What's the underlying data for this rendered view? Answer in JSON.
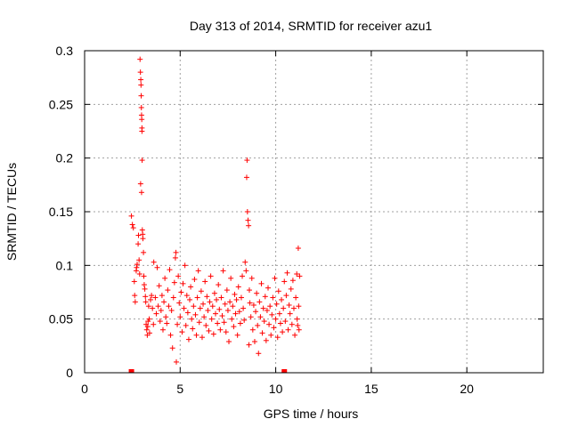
{
  "chart_data": {
    "type": "scatter",
    "title": "Day 313 of 2014, SRMTID for receiver azu1",
    "xlabel": "GPS time / hours",
    "ylabel": "SRMTID / TECUs",
    "xlim": [
      0,
      24
    ],
    "ylim": [
      0,
      0.3
    ],
    "xticks": [
      0,
      5,
      10,
      15,
      20
    ],
    "xtick_labels": [
      "0",
      "5",
      "10",
      "15",
      "20"
    ],
    "yticks": [
      0,
      0.05,
      0.1,
      0.15,
      0.2,
      0.25,
      0.3
    ],
    "ytick_labels": [
      "0",
      "0.05",
      "0.1",
      "0.15",
      "0.2",
      "0.25",
      "0.3"
    ],
    "grid": true,
    "marker": "+",
    "color": "#ff0000",
    "series": [
      {
        "name": "SRMTID",
        "points": [
          [
            2.45,
            0.146
          ],
          [
            2.5,
            0.138
          ],
          [
            2.55,
            0.135
          ],
          [
            2.6,
            0.085
          ],
          [
            2.62,
            0.072
          ],
          [
            2.65,
            0.066
          ],
          [
            2.7,
            0.095
          ],
          [
            2.72,
            0.098
          ],
          [
            2.75,
            0.101
          ],
          [
            2.8,
            0.12
          ],
          [
            2.82,
            0.128
          ],
          [
            2.85,
            0.105
          ],
          [
            2.88,
            0.092
          ],
          [
            2.9,
            0.292
          ],
          [
            2.92,
            0.28
          ],
          [
            2.94,
            0.273
          ],
          [
            2.95,
            0.268
          ],
          [
            2.96,
            0.258
          ],
          [
            2.97,
            0.247
          ],
          [
            2.98,
            0.24
          ],
          [
            2.99,
            0.236
          ],
          [
            3.0,
            0.228
          ],
          [
            3.0,
            0.225
          ],
          [
            3.01,
            0.198
          ],
          [
            2.93,
            0.176
          ],
          [
            2.98,
            0.168
          ],
          [
            3.02,
            0.133
          ],
          [
            3.04,
            0.129
          ],
          [
            3.05,
            0.125
          ],
          [
            3.08,
            0.112
          ],
          [
            3.1,
            0.09
          ],
          [
            3.12,
            0.082
          ],
          [
            3.15,
            0.078
          ],
          [
            3.18,
            0.071
          ],
          [
            3.2,
            0.066
          ],
          [
            3.22,
            0.045
          ],
          [
            3.25,
            0.04
          ],
          [
            3.28,
            0.035
          ],
          [
            3.3,
            0.043
          ],
          [
            3.32,
            0.048
          ],
          [
            3.35,
            0.062
          ],
          [
            3.38,
            0.05
          ],
          [
            3.4,
            0.037
          ],
          [
            3.45,
            0.068
          ],
          [
            3.5,
            0.072
          ],
          [
            3.55,
            0.06
          ],
          [
            3.6,
            0.045
          ],
          [
            3.62,
            0.103
          ],
          [
            3.7,
            0.07
          ],
          [
            3.75,
            0.055
          ],
          [
            3.8,
            0.098
          ],
          [
            3.85,
            0.062
          ],
          [
            3.9,
            0.081
          ],
          [
            3.95,
            0.048
          ],
          [
            4.0,
            0.058
          ],
          [
            4.05,
            0.072
          ],
          [
            4.1,
            0.04
          ],
          [
            4.15,
            0.066
          ],
          [
            4.2,
            0.088
          ],
          [
            4.25,
            0.052
          ],
          [
            4.3,
            0.046
          ],
          [
            4.35,
            0.077
          ],
          [
            4.4,
            0.062
          ],
          [
            4.45,
            0.096
          ],
          [
            4.5,
            0.035
          ],
          [
            4.55,
            0.058
          ],
          [
            4.6,
            0.023
          ],
          [
            4.65,
            0.07
          ],
          [
            4.7,
            0.084
          ],
          [
            4.75,
            0.107
          ],
          [
            4.78,
            0.112
          ],
          [
            4.8,
            0.01
          ],
          [
            4.85,
            0.045
          ],
          [
            4.9,
            0.09
          ],
          [
            4.95,
            0.065
          ],
          [
            5.0,
            0.052
          ],
          [
            5.05,
            0.075
          ],
          [
            5.1,
            0.038
          ],
          [
            5.15,
            0.083
          ],
          [
            5.2,
            0.06
          ],
          [
            5.25,
            0.1
          ],
          [
            5.3,
            0.044
          ],
          [
            5.35,
            0.072
          ],
          [
            5.4,
            0.056
          ],
          [
            5.45,
            0.031
          ],
          [
            5.5,
            0.068
          ],
          [
            5.55,
            0.08
          ],
          [
            5.6,
            0.05
          ],
          [
            5.65,
            0.041
          ],
          [
            5.7,
            0.062
          ],
          [
            5.75,
            0.087
          ],
          [
            5.8,
            0.054
          ],
          [
            5.85,
            0.035
          ],
          [
            5.9,
            0.07
          ],
          [
            5.95,
            0.095
          ],
          [
            6.0,
            0.047
          ],
          [
            6.05,
            0.06
          ],
          [
            6.1,
            0.076
          ],
          [
            6.15,
            0.033
          ],
          [
            6.2,
            0.064
          ],
          [
            6.25,
            0.052
          ],
          [
            6.3,
            0.085
          ],
          [
            6.35,
            0.044
          ],
          [
            6.4,
            0.071
          ],
          [
            6.45,
            0.058
          ],
          [
            6.5,
            0.039
          ],
          [
            6.55,
            0.066
          ],
          [
            6.6,
            0.09
          ],
          [
            6.65,
            0.05
          ],
          [
            6.7,
            0.062
          ],
          [
            6.75,
            0.036
          ],
          [
            6.8,
            0.074
          ],
          [
            6.85,
            0.055
          ],
          [
            6.9,
            0.068
          ],
          [
            6.95,
            0.046
          ],
          [
            7.0,
            0.082
          ],
          [
            7.05,
            0.059
          ],
          [
            7.1,
            0.04
          ],
          [
            7.15,
            0.07
          ],
          [
            7.2,
            0.053
          ],
          [
            7.25,
            0.095
          ],
          [
            7.3,
            0.047
          ],
          [
            7.35,
            0.064
          ],
          [
            7.4,
            0.038
          ],
          [
            7.45,
            0.077
          ],
          [
            7.5,
            0.058
          ],
          [
            7.55,
            0.029
          ],
          [
            7.6,
            0.066
          ],
          [
            7.65,
            0.088
          ],
          [
            7.7,
            0.05
          ],
          [
            7.75,
            0.062
          ],
          [
            7.8,
            0.043
          ],
          [
            7.85,
            0.073
          ],
          [
            7.9,
            0.055
          ],
          [
            7.95,
            0.068
          ],
          [
            8.0,
            0.035
          ],
          [
            8.05,
            0.08
          ],
          [
            8.1,
            0.057
          ],
          [
            8.15,
            0.046
          ],
          [
            8.2,
            0.07
          ],
          [
            8.25,
            0.09
          ],
          [
            8.3,
            0.06
          ],
          [
            8.35,
            0.049
          ],
          [
            8.4,
            0.103
          ],
          [
            8.45,
            0.095
          ],
          [
            8.48,
            0.182
          ],
          [
            8.5,
            0.198
          ],
          [
            8.52,
            0.15
          ],
          [
            8.55,
            0.142
          ],
          [
            8.58,
            0.137
          ],
          [
            8.6,
            0.026
          ],
          [
            8.62,
            0.077
          ],
          [
            8.65,
            0.065
          ],
          [
            8.7,
            0.052
          ],
          [
            8.75,
            0.088
          ],
          [
            8.8,
            0.04
          ],
          [
            8.85,
            0.063
          ],
          [
            8.9,
            0.029
          ],
          [
            8.95,
            0.057
          ],
          [
            9.0,
            0.074
          ],
          [
            9.05,
            0.044
          ],
          [
            9.1,
            0.018
          ],
          [
            9.15,
            0.066
          ],
          [
            9.2,
            0.052
          ],
          [
            9.25,
            0.083
          ],
          [
            9.3,
            0.037
          ],
          [
            9.35,
            0.06
          ],
          [
            9.4,
            0.048
          ],
          [
            9.45,
            0.071
          ],
          [
            9.5,
            0.03
          ],
          [
            9.55,
            0.058
          ],
          [
            9.6,
            0.079
          ],
          [
            9.65,
            0.045
          ],
          [
            9.7,
            0.062
          ],
          [
            9.75,
            0.035
          ],
          [
            9.8,
            0.054
          ],
          [
            9.85,
            0.07
          ],
          [
            9.9,
            0.042
          ],
          [
            9.95,
            0.088
          ],
          [
            10.0,
            0.05
          ],
          [
            10.05,
            0.064
          ],
          [
            10.1,
            0.033
          ],
          [
            10.15,
            0.076
          ],
          [
            10.2,
            0.055
          ],
          [
            10.25,
            0.046
          ],
          [
            10.3,
            0.068
          ],
          [
            10.35,
            0.038
          ],
          [
            10.4,
            0.06
          ],
          [
            10.45,
            0.085
          ],
          [
            10.5,
            0.048
          ],
          [
            10.55,
            0.072
          ],
          [
            10.6,
            0.093
          ],
          [
            10.65,
            0.04
          ],
          [
            10.7,
            0.063
          ],
          [
            10.75,
            0.055
          ],
          [
            10.8,
            0.078
          ],
          [
            10.85,
            0.045
          ],
          [
            10.9,
            0.086
          ],
          [
            10.95,
            0.06
          ],
          [
            11.0,
            0.035
          ],
          [
            11.05,
            0.07
          ],
          [
            11.1,
            0.092
          ],
          [
            11.12,
            0.05
          ],
          [
            11.15,
            0.044
          ],
          [
            11.18,
            0.116
          ],
          [
            11.2,
            0.062
          ],
          [
            11.22,
            0.04
          ],
          [
            11.25,
            0.09
          ]
        ]
      }
    ],
    "baseline_markers": [
      2.45,
      10.45
    ]
  }
}
